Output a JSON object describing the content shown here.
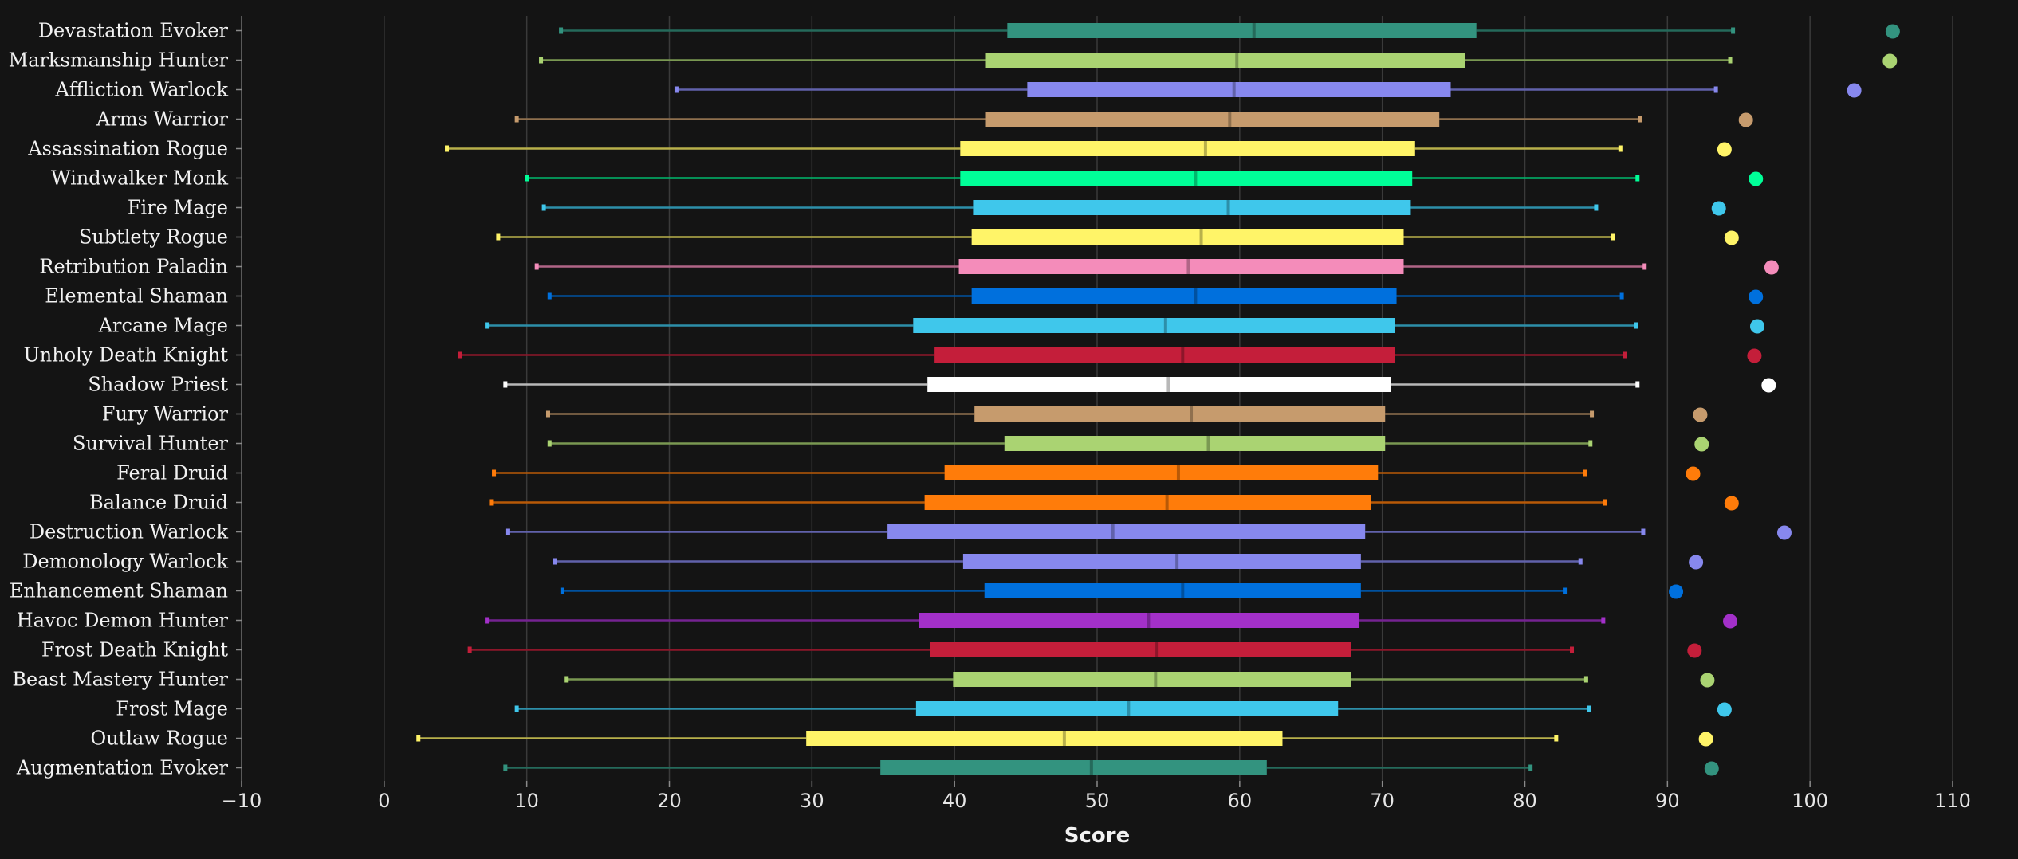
{
  "chart_data": {
    "type": "box",
    "title": "",
    "xlabel": "Score",
    "ylabel": "",
    "xlim": [
      -10,
      110
    ],
    "xticks": [
      -10,
      0,
      10,
      20,
      30,
      40,
      50,
      60,
      70,
      80,
      90,
      100,
      110
    ],
    "xtick_labels": [
      "−10",
      "0",
      "10",
      "20",
      "30",
      "40",
      "50",
      "60",
      "70",
      "80",
      "90",
      "100",
      "110"
    ],
    "grid": true,
    "legend": "none",
    "series": [
      {
        "name": "Devastation Evoker",
        "color": "#33937f",
        "min": 12.4,
        "q1": 43.7,
        "median": 61.0,
        "q3": 76.6,
        "max": 94.6,
        "top": 105.8
      },
      {
        "name": "Marksmanship Hunter",
        "color": "#aad372",
        "min": 11.0,
        "q1": 42.2,
        "median": 59.8,
        "q3": 75.8,
        "max": 94.4,
        "top": 105.6
      },
      {
        "name": "Affliction Warlock",
        "color": "#8788ee",
        "min": 20.5,
        "q1": 45.1,
        "median": 59.6,
        "q3": 74.8,
        "max": 93.4,
        "top": 103.1
      },
      {
        "name": "Arms Warrior",
        "color": "#c69b6d",
        "min": 9.3,
        "q1": 42.2,
        "median": 59.3,
        "q3": 74.0,
        "max": 88.1,
        "top": 95.5
      },
      {
        "name": "Assassination Rogue",
        "color": "#fff468",
        "min": 4.4,
        "q1": 40.4,
        "median": 57.6,
        "q3": 72.3,
        "max": 86.7,
        "top": 94.0
      },
      {
        "name": "Windwalker Monk",
        "color": "#00ff98",
        "min": 10.0,
        "q1": 40.4,
        "median": 56.9,
        "q3": 72.1,
        "max": 87.9,
        "top": 96.2
      },
      {
        "name": "Fire Mage",
        "color": "#3fc7eb",
        "min": 11.2,
        "q1": 41.3,
        "median": 59.2,
        "q3": 72.0,
        "max": 85.0,
        "top": 93.6
      },
      {
        "name": "Subtlety Rogue",
        "color": "#fff468",
        "min": 8.0,
        "q1": 41.2,
        "median": 57.3,
        "q3": 71.5,
        "max": 86.2,
        "top": 94.5
      },
      {
        "name": "Retribution Paladin",
        "color": "#f48cba",
        "min": 10.7,
        "q1": 40.3,
        "median": 56.4,
        "q3": 71.5,
        "max": 88.4,
        "top": 97.3
      },
      {
        "name": "Elemental Shaman",
        "color": "#0070dd",
        "min": 11.6,
        "q1": 41.2,
        "median": 56.9,
        "q3": 71.0,
        "max": 86.8,
        "top": 96.2
      },
      {
        "name": "Arcane Mage",
        "color": "#3fc7eb",
        "min": 7.2,
        "q1": 37.1,
        "median": 54.8,
        "q3": 70.9,
        "max": 87.8,
        "top": 96.3
      },
      {
        "name": "Unholy Death Knight",
        "color": "#c41e3a",
        "min": 5.3,
        "q1": 38.6,
        "median": 56.0,
        "q3": 70.9,
        "max": 87.0,
        "top": 96.1
      },
      {
        "name": "Shadow Priest",
        "color": "#ffffff",
        "min": 8.5,
        "q1": 38.1,
        "median": 55.0,
        "q3": 70.6,
        "max": 87.9,
        "top": 97.1
      },
      {
        "name": "Fury Warrior",
        "color": "#c69b6d",
        "min": 11.5,
        "q1": 41.4,
        "median": 56.6,
        "q3": 70.2,
        "max": 84.7,
        "top": 92.3
      },
      {
        "name": "Survival Hunter",
        "color": "#aad372",
        "min": 11.6,
        "q1": 43.5,
        "median": 57.8,
        "q3": 70.2,
        "max": 84.6,
        "top": 92.4
      },
      {
        "name": "Feral Druid",
        "color": "#ff7c0a",
        "min": 7.7,
        "q1": 39.3,
        "median": 55.7,
        "q3": 69.7,
        "max": 84.2,
        "top": 91.8
      },
      {
        "name": "Balance Druid",
        "color": "#ff7c0a",
        "min": 7.5,
        "q1": 37.9,
        "median": 54.9,
        "q3": 69.2,
        "max": 85.6,
        "top": 94.5
      },
      {
        "name": "Destruction Warlock",
        "color": "#8788ee",
        "min": 8.7,
        "q1": 35.3,
        "median": 51.1,
        "q3": 68.8,
        "max": 88.3,
        "top": 98.2
      },
      {
        "name": "Demonology Warlock",
        "color": "#8788ee",
        "min": 12.0,
        "q1": 40.6,
        "median": 55.6,
        "q3": 68.5,
        "max": 83.9,
        "top": 92.0
      },
      {
        "name": "Enhancement Shaman",
        "color": "#0070dd",
        "min": 12.5,
        "q1": 42.1,
        "median": 56.0,
        "q3": 68.5,
        "max": 82.8,
        "top": 90.6
      },
      {
        "name": "Havoc Demon Hunter",
        "color": "#a330c9",
        "min": 7.2,
        "q1": 37.5,
        "median": 53.6,
        "q3": 68.4,
        "max": 85.5,
        "top": 94.4
      },
      {
        "name": "Frost Death Knight",
        "color": "#c41e3a",
        "min": 6.0,
        "q1": 38.3,
        "median": 54.2,
        "q3": 67.8,
        "max": 83.3,
        "top": 91.9
      },
      {
        "name": "Beast Mastery Hunter",
        "color": "#aad372",
        "min": 12.8,
        "q1": 39.9,
        "median": 54.1,
        "q3": 67.8,
        "max": 84.3,
        "top": 92.8
      },
      {
        "name": "Frost Mage",
        "color": "#3fc7eb",
        "min": 9.3,
        "q1": 37.3,
        "median": 52.2,
        "q3": 66.9,
        "max": 84.5,
        "top": 94.0
      },
      {
        "name": "Outlaw Rogue",
        "color": "#fff468",
        "min": 2.4,
        "q1": 29.6,
        "median": 47.7,
        "q3": 63.0,
        "max": 82.2,
        "top": 92.7
      },
      {
        "name": "Augmentation Evoker",
        "color": "#33937f",
        "min": 8.5,
        "q1": 34.8,
        "median": 49.6,
        "q3": 61.9,
        "max": 80.4,
        "top": 93.1
      }
    ]
  }
}
